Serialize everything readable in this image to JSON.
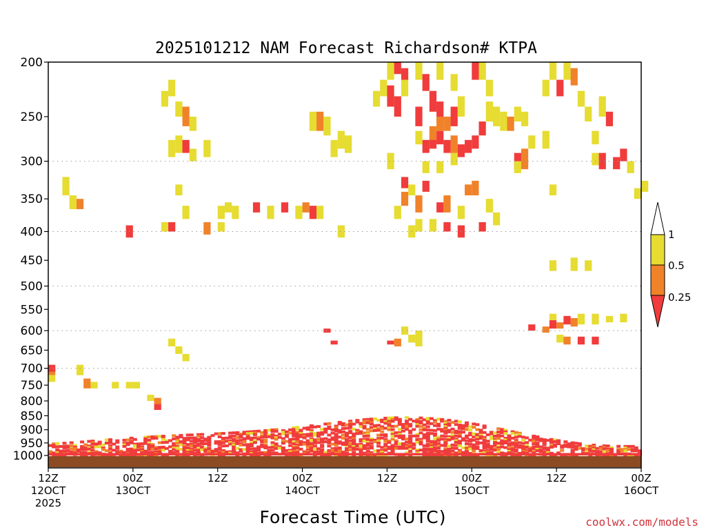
{
  "chart_data": {
    "type": "heatmap",
    "title": "2025101212 NAM Forecast Richardson# KTPA",
    "xlabel": "Forecast Time (UTC)",
    "ylabel": "",
    "x_unit": "forecast hours from 2025-10-12 12Z",
    "xlim": [
      0,
      84
    ],
    "x_ticks": [
      {
        "hour": 0,
        "line1": "12Z",
        "line2": "12OCT",
        "line3": "2025"
      },
      {
        "hour": 12,
        "line1": "00Z",
        "line2": "13OCT",
        "line3": ""
      },
      {
        "hour": 24,
        "line1": "12Z",
        "line2": "",
        "line3": ""
      },
      {
        "hour": 36,
        "line1": "00Z",
        "line2": "14OCT",
        "line3": ""
      },
      {
        "hour": 48,
        "line1": "12Z",
        "line2": "",
        "line3": ""
      },
      {
        "hour": 60,
        "line1": "00Z",
        "line2": "15OCT",
        "line3": ""
      },
      {
        "hour": 72,
        "line1": "12Z",
        "line2": "",
        "line3": ""
      },
      {
        "hour": 84,
        "line1": "00Z",
        "line2": "16OCT",
        "line3": ""
      }
    ],
    "y_unit": "hPa",
    "ylim": [
      1000,
      200
    ],
    "y_ticks": [
      200,
      250,
      300,
      350,
      400,
      450,
      500,
      550,
      600,
      650,
      700,
      750,
      800,
      850,
      900,
      950,
      1000
    ],
    "gridlines_dotted_at": [
      300,
      400,
      500,
      600,
      700
    ],
    "legend": {
      "placement": "right",
      "labels": [
        "1",
        "0.5",
        "0.25"
      ],
      "bins": [
        {
          "range": "0.5-1",
          "color": "#e6dc32"
        },
        {
          "range": "0.25-0.5",
          "color": "#f0822a"
        },
        {
          "range": "<0.25",
          "color": "#f03c3c"
        }
      ]
    },
    "surface_color": "#8c4b23",
    "colors": {
      "yellow": "#e6dc32",
      "orange": "#f0822a",
      "red": "#f03c3c"
    },
    "cells": [
      [
        0,
        2,
        700,
        720
      ],
      [
        0,
        3,
        690,
        710
      ],
      [
        0,
        1,
        720,
        740
      ],
      [
        4,
        1,
        690,
        720
      ],
      [
        5,
        2,
        730,
        760
      ],
      [
        6,
        1,
        740,
        760
      ],
      [
        9,
        1,
        740,
        760
      ],
      [
        11,
        1,
        740,
        760
      ],
      [
        12,
        1,
        740,
        760
      ],
      [
        14,
        1,
        780,
        800
      ],
      [
        15,
        2,
        790,
        810
      ],
      [
        15,
        3,
        810,
        830
      ],
      [
        18,
        1,
        640,
        660
      ],
      [
        19,
        1,
        660,
        680
      ],
      [
        17,
        1,
        620,
        640
      ],
      [
        39,
        3,
        595,
        605
      ],
      [
        40,
        3,
        625,
        635
      ],
      [
        48,
        3,
        625,
        635
      ],
      [
        49,
        2,
        620,
        640
      ],
      [
        50,
        1,
        590,
        610
      ],
      [
        51,
        1,
        610,
        630
      ],
      [
        52,
        1,
        600,
        640
      ],
      [
        68,
        3,
        585,
        600
      ],
      [
        70,
        2,
        590,
        605
      ],
      [
        71,
        3,
        575,
        595
      ],
      [
        72,
        2,
        580,
        595
      ],
      [
        73,
        3,
        565,
        585
      ],
      [
        74,
        2,
        570,
        590
      ],
      [
        75,
        1,
        560,
        585
      ],
      [
        77,
        1,
        560,
        585
      ],
      [
        79,
        1,
        565,
        580
      ],
      [
        81,
        1,
        560,
        580
      ],
      [
        71,
        1,
        560,
        575
      ],
      [
        72,
        1,
        610,
        630
      ],
      [
        73,
        2,
        615,
        635
      ],
      [
        75,
        3,
        615,
        635
      ],
      [
        77,
        3,
        615,
        635
      ],
      [
        71,
        1,
        450,
        470
      ],
      [
        74,
        1,
        445,
        470
      ],
      [
        76,
        1,
        450,
        470
      ],
      [
        11,
        3,
        390,
        410
      ],
      [
        16,
        1,
        385,
        400
      ],
      [
        17,
        3,
        385,
        400
      ],
      [
        22,
        2,
        385,
        405
      ],
      [
        24,
        1,
        385,
        400
      ],
      [
        25,
        1,
        355,
        370
      ],
      [
        26,
        1,
        360,
        380
      ],
      [
        29,
        3,
        355,
        370
      ],
      [
        31,
        1,
        360,
        380
      ],
      [
        33,
        3,
        355,
        370
      ],
      [
        35,
        1,
        360,
        380
      ],
      [
        36,
        2,
        355,
        370
      ],
      [
        37,
        3,
        360,
        380
      ],
      [
        38,
        1,
        360,
        380
      ],
      [
        41,
        1,
        390,
        410
      ],
      [
        2,
        1,
        320,
        345
      ],
      [
        3,
        1,
        345,
        365
      ],
      [
        4,
        2,
        350,
        365
      ],
      [
        18,
        1,
        330,
        345
      ],
      [
        19,
        1,
        360,
        380
      ],
      [
        24,
        1,
        360,
        380
      ],
      [
        48,
        1,
        290,
        310
      ],
      [
        49,
        1,
        360,
        380
      ],
      [
        50,
        2,
        340,
        360
      ],
      [
        50,
        3,
        320,
        335
      ],
      [
        51,
        1,
        330,
        345
      ],
      [
        52,
        2,
        345,
        370
      ],
      [
        53,
        3,
        325,
        340
      ],
      [
        55,
        3,
        355,
        370
      ],
      [
        56,
        2,
        345,
        370
      ],
      [
        54,
        1,
        380,
        400
      ],
      [
        56,
        3,
        385,
        400
      ],
      [
        58,
        3,
        390,
        410
      ],
      [
        59,
        2,
        330,
        345
      ],
      [
        60,
        2,
        325,
        345
      ],
      [
        61,
        3,
        385,
        400
      ],
      [
        62,
        1,
        350,
        370
      ],
      [
        63,
        1,
        370,
        390
      ],
      [
        58,
        1,
        360,
        380
      ],
      [
        57,
        1,
        290,
        305
      ],
      [
        55,
        1,
        300,
        315
      ],
      [
        53,
        1,
        300,
        315
      ],
      [
        52,
        1,
        380,
        400
      ],
      [
        51,
        1,
        390,
        410
      ],
      [
        66,
        3,
        290,
        310
      ],
      [
        67,
        2,
        285,
        310
      ],
      [
        66,
        1,
        300,
        315
      ],
      [
        70,
        1,
        265,
        285
      ],
      [
        71,
        1,
        330,
        345
      ],
      [
        77,
        1,
        290,
        305
      ],
      [
        78,
        3,
        290,
        310
      ],
      [
        80,
        3,
        295,
        310
      ],
      [
        81,
        3,
        285,
        300
      ],
      [
        82,
        1,
        300,
        315
      ],
      [
        83,
        1,
        335,
        350
      ],
      [
        84,
        1,
        325,
        340
      ],
      [
        16,
        1,
        225,
        240
      ],
      [
        17,
        1,
        215,
        230
      ],
      [
        18,
        1,
        235,
        250
      ],
      [
        19,
        2,
        240,
        260
      ],
      [
        20,
        1,
        250,
        265
      ],
      [
        17,
        1,
        275,
        295
      ],
      [
        18,
        1,
        270,
        290
      ],
      [
        19,
        3,
        275,
        290
      ],
      [
        20,
        1,
        285,
        300
      ],
      [
        22,
        1,
        275,
        295
      ],
      [
        37,
        1,
        245,
        265
      ],
      [
        38,
        2,
        245,
        265
      ],
      [
        39,
        1,
        250,
        270
      ],
      [
        40,
        1,
        275,
        295
      ],
      [
        41,
        1,
        265,
        285
      ],
      [
        42,
        1,
        270,
        290
      ],
      [
        46,
        1,
        225,
        240
      ],
      [
        47,
        1,
        215,
        230
      ],
      [
        48,
        3,
        220,
        240
      ],
      [
        49,
        3,
        230,
        250
      ],
      [
        50,
        1,
        210,
        230
      ],
      [
        48,
        1,
        200,
        215
      ],
      [
        49,
        3,
        200,
        210
      ],
      [
        50,
        3,
        205,
        215
      ],
      [
        52,
        1,
        200,
        215
      ],
      [
        53,
        3,
        210,
        225
      ],
      [
        54,
        3,
        225,
        245
      ],
      [
        55,
        3,
        235,
        255
      ],
      [
        56,
        2,
        250,
        265
      ],
      [
        57,
        3,
        240,
        260
      ],
      [
        58,
        1,
        230,
        250
      ],
      [
        52,
        3,
        240,
        260
      ],
      [
        53,
        3,
        275,
        290
      ],
      [
        54,
        3,
        270,
        285
      ],
      [
        55,
        3,
        265,
        280
      ],
      [
        56,
        3,
        275,
        290
      ],
      [
        57,
        2,
        270,
        290
      ],
      [
        58,
        3,
        280,
        295
      ],
      [
        59,
        3,
        275,
        290
      ],
      [
        60,
        3,
        270,
        285
      ],
      [
        55,
        2,
        250,
        265
      ],
      [
        54,
        2,
        260,
        275
      ],
      [
        52,
        1,
        265,
        280
      ],
      [
        61,
        3,
        255,
        270
      ],
      [
        62,
        1,
        235,
        255
      ],
      [
        60,
        3,
        200,
        215
      ],
      [
        61,
        1,
        200,
        215
      ],
      [
        62,
        1,
        215,
        230
      ],
      [
        63,
        1,
        240,
        260
      ],
      [
        55,
        1,
        200,
        215
      ],
      [
        57,
        1,
        210,
        225
      ],
      [
        64,
        1,
        245,
        265
      ],
      [
        65,
        2,
        250,
        265
      ],
      [
        66,
        1,
        240,
        255
      ],
      [
        67,
        1,
        245,
        260
      ],
      [
        68,
        1,
        270,
        285
      ],
      [
        70,
        1,
        215,
        230
      ],
      [
        71,
        1,
        200,
        215
      ],
      [
        72,
        3,
        215,
        230
      ],
      [
        73,
        1,
        200,
        215
      ],
      [
        74,
        2,
        205,
        220
      ],
      [
        75,
        1,
        225,
        240
      ],
      [
        76,
        1,
        240,
        255
      ],
      [
        77,
        1,
        265,
        280
      ],
      [
        78,
        1,
        230,
        250
      ],
      [
        79,
        3,
        245,
        260
      ]
    ],
    "boundary_layer": "dense red (Ri < 0.25) patches between 850 and 1000 hPa along the full forecast, with scattered orange and yellow pixels above"
  },
  "credit": "coolwx.com/models"
}
